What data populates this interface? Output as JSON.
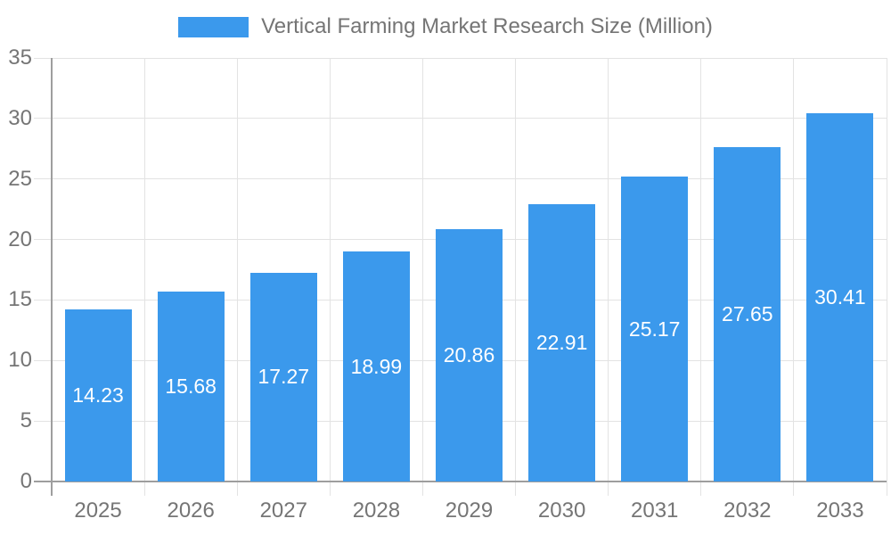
{
  "legend": {
    "label": "Vertical Farming Market Research Size (Million)"
  },
  "chart_data": {
    "type": "bar",
    "title": "Vertical Farming Market Research Size (Million)",
    "series_name": "Vertical Farming Market Research Size (Million)",
    "categories": [
      "2025",
      "2026",
      "2027",
      "2028",
      "2029",
      "2030",
      "2031",
      "2032",
      "2033"
    ],
    "values": [
      14.23,
      15.68,
      17.27,
      18.99,
      20.86,
      22.91,
      25.17,
      27.65,
      30.41
    ],
    "value_labels": [
      "14.23",
      "15.68",
      "17.27",
      "18.99",
      "20.86",
      "22.91",
      "25.17",
      "27.65",
      "30.41"
    ],
    "xlabel": "",
    "ylabel": "",
    "ylim": [
      0,
      35
    ],
    "y_ticks": [
      0,
      5,
      10,
      15,
      20,
      25,
      30,
      35
    ],
    "grid": true,
    "legend_position": "top",
    "colors": {
      "bar": "#3B99EC",
      "value_label": "#FFFFFF",
      "gridline": "#E3E3E3",
      "axis_line": "#9E9E9E",
      "tick_label": "#757575",
      "legend_text": "#757575",
      "background": "#FFFFFF"
    }
  }
}
